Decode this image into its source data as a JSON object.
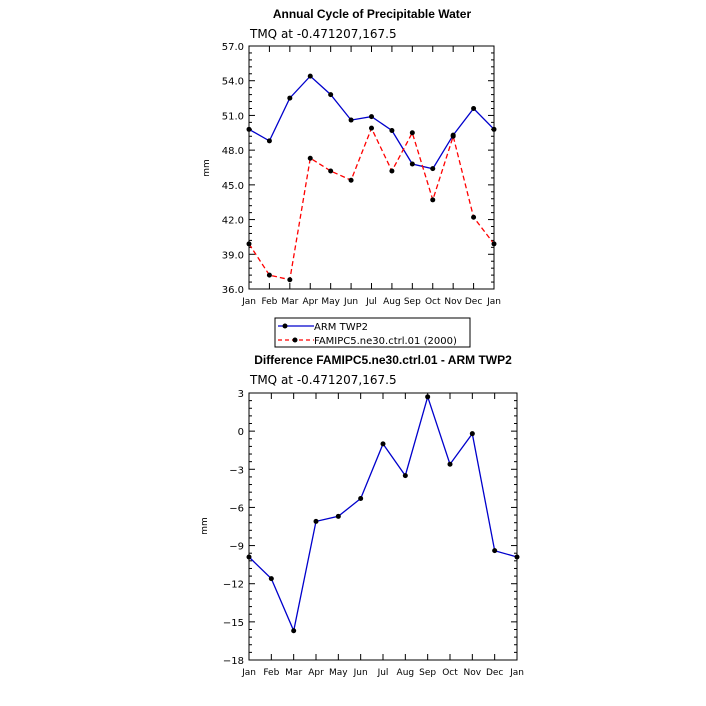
{
  "chart_data": [
    {
      "type": "line",
      "title": "Annual Cycle of Precipitable Water",
      "subtitle": "TMQ at -0.471207,167.5",
      "xlabel": "",
      "ylabel": "mm",
      "categories": [
        "Jan",
        "Feb",
        "Mar",
        "Apr",
        "May",
        "Jun",
        "Jul",
        "Aug",
        "Sep",
        "Oct",
        "Nov",
        "Dec",
        "Jan"
      ],
      "ylim": [
        36.0,
        57.0
      ],
      "yticks": [
        "36.0",
        "39.0",
        "42.0",
        "45.0",
        "48.0",
        "51.0",
        "54.0",
        "57.0"
      ],
      "ytick_values": [
        36,
        39,
        42,
        45,
        48,
        51,
        54,
        57
      ],
      "series": [
        {
          "name": "ARM TWP2",
          "color": "#0000cc",
          "dash": "solid",
          "values": [
            49.8,
            48.8,
            52.5,
            54.4,
            52.8,
            50.6,
            50.9,
            49.7,
            46.8,
            46.4,
            49.3,
            51.6,
            49.8
          ]
        },
        {
          "name": "FAMIPC5.ne30.ctrl.01 (2000)",
          "color": "#ff0000",
          "dash": "dashed",
          "values": [
            39.9,
            37.2,
            36.8,
            47.3,
            46.2,
            45.4,
            49.9,
            46.2,
            49.5,
            43.7,
            49.2,
            42.2,
            39.9
          ]
        }
      ],
      "legend_position": "bottom"
    },
    {
      "type": "line",
      "title": "Difference FAMIPC5.ne30.ctrl.01 - ARM TWP2",
      "subtitle": "TMQ at -0.471207,167.5",
      "xlabel": "",
      "ylabel": "mm",
      "categories": [
        "Jan",
        "Feb",
        "Mar",
        "Apr",
        "May",
        "Jun",
        "Jul",
        "Aug",
        "Sep",
        "Oct",
        "Nov",
        "Dec",
        "Jan"
      ],
      "ylim": [
        -18,
        3
      ],
      "yticks": [
        "−18",
        "−15",
        "−12",
        "−9",
        "−6",
        "−3",
        "0",
        "3"
      ],
      "ytick_values": [
        -18,
        -15,
        -12,
        -9,
        -6,
        -3,
        0,
        3
      ],
      "series": [
        {
          "name": "Difference",
          "color": "#0000cc",
          "dash": "solid",
          "values": [
            -9.9,
            -11.6,
            -15.7,
            -7.1,
            -6.7,
            -5.3,
            -1.0,
            -3.5,
            2.7,
            -2.6,
            -0.2,
            -9.4,
            -9.9
          ]
        }
      ]
    }
  ]
}
